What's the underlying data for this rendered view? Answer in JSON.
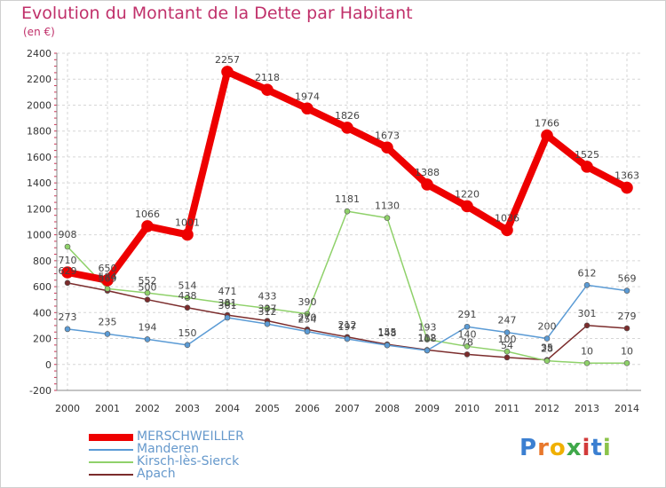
{
  "title": "Evolution du Montant de la Dette par Habitant",
  "subtitle": "(en €)",
  "logo": "Proxiti",
  "chart_data": {
    "type": "line",
    "x": [
      "2000",
      "2001",
      "2002",
      "2003",
      "2004",
      "2005",
      "2006",
      "2007",
      "2008",
      "2009",
      "2010",
      "2011",
      "2012",
      "2013",
      "2014"
    ],
    "ylim": [
      -200,
      2400
    ],
    "yticks": [
      -200,
      0,
      200,
      400,
      600,
      800,
      1000,
      1200,
      1400,
      1600,
      1800,
      2000,
      2200,
      2400
    ],
    "grid": true,
    "legend_position": "bottom-left",
    "series": [
      {
        "name": "MERSCHWEILLER",
        "color": "#ee0000",
        "values": [
          710,
          650,
          1066,
          1001,
          2257,
          2118,
          1974,
          1826,
          1673,
          1388,
          1220,
          1036,
          1766,
          1525,
          1363
        ]
      },
      {
        "name": "Manderen",
        "color": "#5b9bd5",
        "values": [
          273,
          235,
          194,
          150,
          361,
          312,
          254,
          197,
          148,
          108,
          291,
          247,
          200,
          612,
          569
        ]
      },
      {
        "name": "Kirsch-lès-Sierck",
        "color": "#8fd16a",
        "values": [
          908,
          584,
          552,
          514,
          471,
          433,
          390,
          1181,
          1130,
          193,
          140,
          100,
          28,
          10,
          10
        ]
      },
      {
        "name": "Apach",
        "color": "#7b2c2c",
        "values": [
          629,
          569,
          500,
          438,
          381,
          337,
          270,
          212,
          155,
          112,
          78,
          54,
          35,
          301,
          279
        ]
      }
    ]
  }
}
